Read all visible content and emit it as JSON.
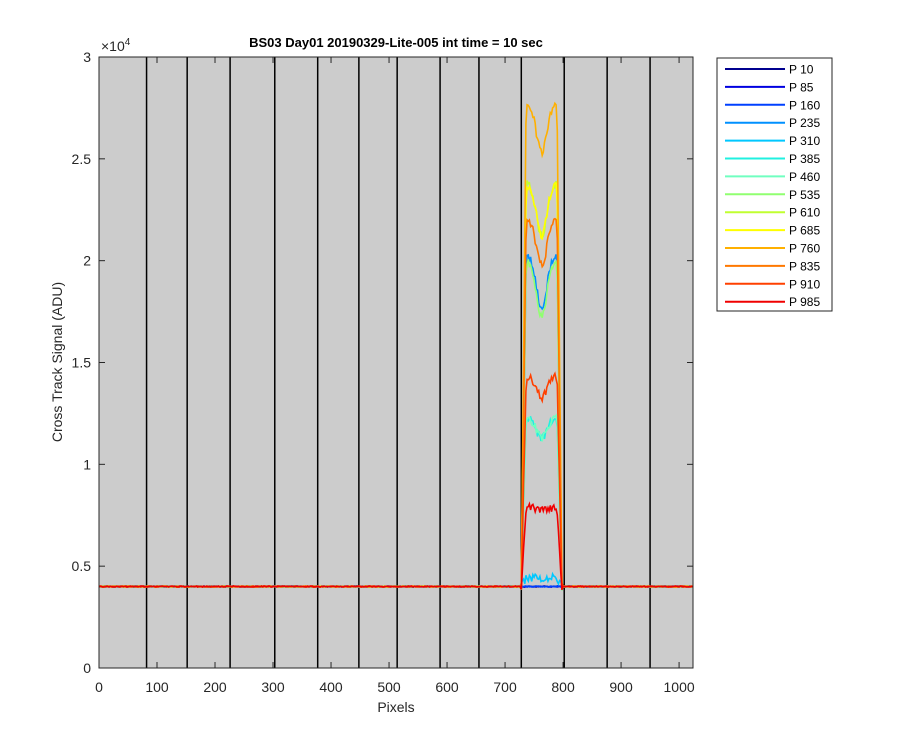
{
  "chart_data": {
    "type": "line",
    "title": "BS03 Day01 20190329-Lite-005 int time = 10 sec",
    "xlabel": "Pixels",
    "ylabel": "Cross Track Signal (ADU)",
    "y_exponent_label": "×10",
    "y_exponent_power": "4",
    "xlim": [
      0,
      1024
    ],
    "ylim": [
      0,
      30000
    ],
    "x_ticks": [
      0,
      100,
      200,
      300,
      400,
      500,
      600,
      700,
      800,
      900,
      1000
    ],
    "x_tick_labels": [
      "0",
      "100",
      "200",
      "300",
      "400",
      "500",
      "600",
      "700",
      "800",
      "900",
      "1000"
    ],
    "y_ticks": [
      0,
      5000,
      10000,
      15000,
      20000,
      25000,
      30000
    ],
    "y_tick_labels": [
      "0",
      "0.5",
      "1",
      "1.5",
      "2",
      "2.5",
      "3"
    ],
    "plot_background": "#cccccc",
    "vertical_boundaries_x": [
      82,
      152,
      226,
      303,
      377,
      448,
      514,
      588,
      655,
      728,
      802,
      876,
      950
    ],
    "baseline": 4000,
    "window_start": 728,
    "window_end": 798,
    "legend_position": "outside-right",
    "series": [
      {
        "name": "P 10",
        "color": "#00008f",
        "plateau": 4000,
        "dip": 0
      },
      {
        "name": "P 85",
        "color": "#0000e0",
        "plateau": 4000,
        "dip": 0
      },
      {
        "name": "P 160",
        "color": "#0040ff",
        "plateau": 4000,
        "dip": 0
      },
      {
        "name": "P 235",
        "color": "#0090ff",
        "plateau": 20300,
        "dip": 2600
      },
      {
        "name": "P 310",
        "color": "#00c8ff",
        "plateau": 4450,
        "dip": 100
      },
      {
        "name": "P 385",
        "color": "#20f0e0",
        "plateau": 12300,
        "dip": 1000
      },
      {
        "name": "P 460",
        "color": "#70ffc0",
        "plateau": 12300,
        "dip": 1000
      },
      {
        "name": "P 535",
        "color": "#90ff70",
        "plateau": 20000,
        "dip": 2700
      },
      {
        "name": "P 610",
        "color": "#c0ff30",
        "plateau": 23800,
        "dip": 2600
      },
      {
        "name": "P 685",
        "color": "#ffff00",
        "plateau": 23800,
        "dip": 2600
      },
      {
        "name": "P 760",
        "color": "#ffb000",
        "plateau": 27700,
        "dip": 2400
      },
      {
        "name": "P 835",
        "color": "#ff7800",
        "plateau": 22000,
        "dip": 2200
      },
      {
        "name": "P 910",
        "color": "#ff4000",
        "plateau": 14300,
        "dip": 1000
      },
      {
        "name": "P 985",
        "color": "#f00000",
        "plateau": 7900,
        "dip": 150
      }
    ]
  }
}
